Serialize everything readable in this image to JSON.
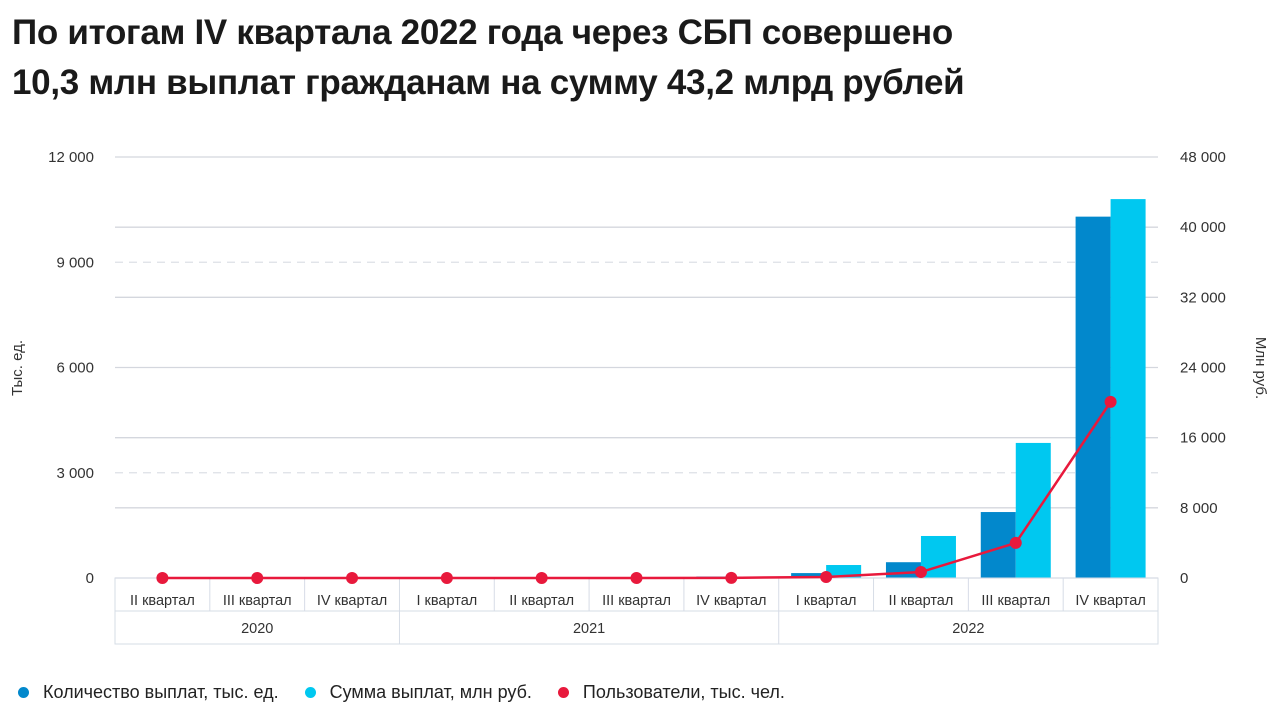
{
  "title": "По итогам IV квартала 2022 года через СБП совершено 10,3 млн выплат гражданам на сумму 43,2 млрд рублей",
  "chart_data": {
    "type": "bar",
    "title": "По итогам IV квартала 2022 года через СБП совершено 10,3 млн выплат гражданам на сумму 43,2 млрд рублей",
    "categories": [
      "II квартал",
      "III квартал",
      "IV квартал",
      "I квартал",
      "II квартал",
      "III квартал",
      "IV квартал",
      "I квартал",
      "II квартал",
      "III квартал",
      "IV квартал"
    ],
    "groups": [
      {
        "label": "2020",
        "span": 3
      },
      {
        "label": "2021",
        "span": 4
      },
      {
        "label": "2022",
        "span": 4
      }
    ],
    "ylabel_left": "Тыс. ед.",
    "ylabel_right": "Млн руб.",
    "ylim_left": [
      0,
      12000
    ],
    "ylim_right": [
      0,
      48000
    ],
    "yticks_left": [
      "0",
      "3 000",
      "6 000",
      "9 000",
      "12 000"
    ],
    "yticks_right": [
      "0",
      "8 000",
      "16 000",
      "24 000",
      "32 000",
      "40 000",
      "48 000"
    ],
    "grid": true,
    "legend_position": "bottom-left",
    "series": [
      {
        "name": "Количество выплат, тыс. ед.",
        "type": "bar",
        "axis": "left",
        "color": "#0288cc",
        "values": [
          0,
          0,
          0,
          0,
          0,
          5,
          40,
          140,
          450,
          1880,
          10300
        ]
      },
      {
        "name": "Сумма выплат, млн руб.",
        "type": "bar",
        "axis": "right",
        "color": "#00c8f0",
        "values": [
          0,
          0,
          0,
          0,
          0,
          10,
          150,
          1480,
          4790,
          15400,
          43200
        ]
      },
      {
        "name": "Пользователи, тыс. чел.",
        "type": "line",
        "axis": "left",
        "color": "#e8193c",
        "values": [
          0,
          0,
          0,
          0,
          0,
          1,
          5,
          30,
          170,
          1000,
          5020
        ]
      }
    ]
  }
}
